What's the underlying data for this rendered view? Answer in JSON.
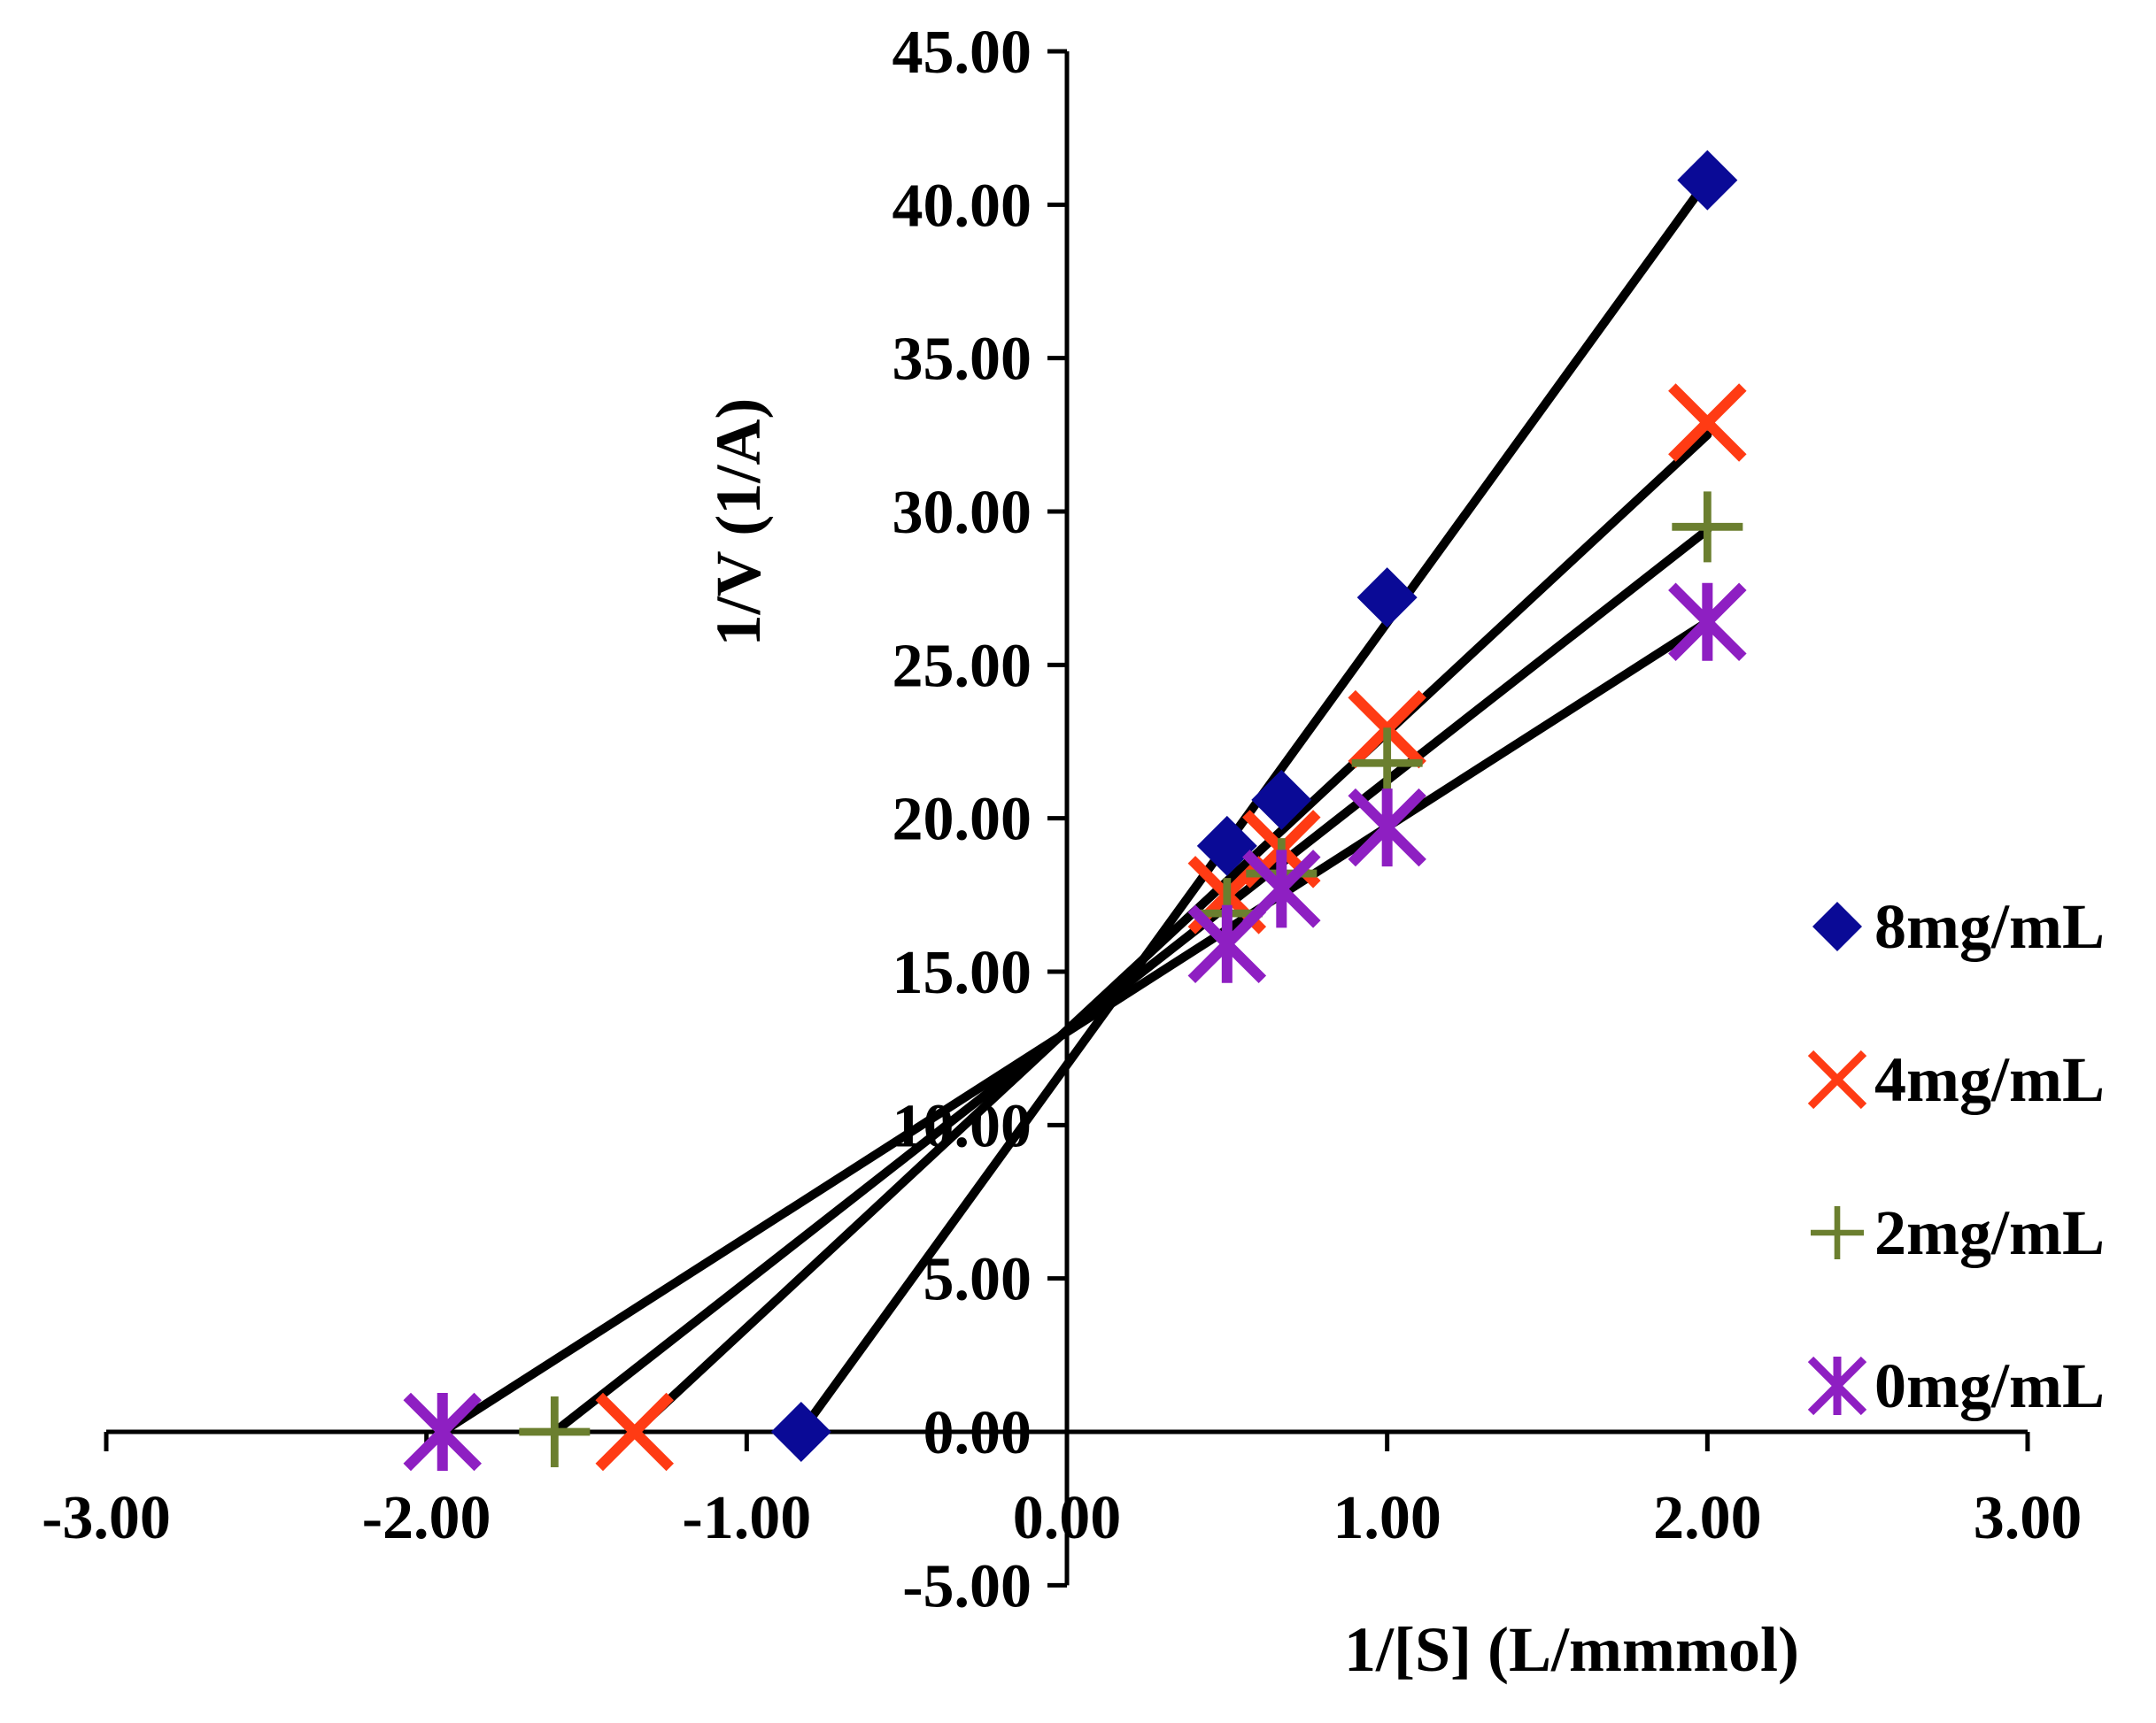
{
  "chart_data": {
    "type": "scatter",
    "title": "",
    "xlabel": "1/[S] (L/mmmol)",
    "ylabel": "1/V (1/A)",
    "xlim": [
      -3,
      3
    ],
    "ylim": [
      -5,
      45
    ],
    "x_ticks": [
      -3,
      -2,
      -1,
      0,
      1,
      2,
      3
    ],
    "y_ticks": [
      -5,
      0,
      5,
      10,
      15,
      20,
      25,
      30,
      35,
      40,
      45
    ],
    "x_tick_labels": [
      "-3.00",
      "-2.00",
      "-1.00",
      "0.00",
      "1.00",
      "2.00",
      "3.00"
    ],
    "y_tick_labels": [
      "-5.00",
      "0.00",
      "5.00",
      "10.00",
      "15.00",
      "20.00",
      "25.00",
      "30.00",
      "35.00",
      "40.00",
      "45.00"
    ],
    "grid": false,
    "legend_position": "right",
    "series": [
      {
        "name": "8mg/mL",
        "marker": "diamond",
        "color": "#0a0a96",
        "points": [
          [
            -0.83,
            0.0
          ],
          [
            0.5,
            19.1
          ],
          [
            0.67,
            20.6
          ],
          [
            1.0,
            27.2
          ],
          [
            2.0,
            40.8
          ]
        ],
        "fit_line": [
          [
            -0.83,
            0.0
          ],
          [
            2.0,
            40.8
          ]
        ]
      },
      {
        "name": "4mg/mL",
        "marker": "x",
        "color": "#ff3b14",
        "color_alt": "#c0280f",
        "points": [
          [
            -1.35,
            0.0
          ],
          [
            0.5,
            17.5
          ],
          [
            0.67,
            19.0
          ],
          [
            1.0,
            22.9
          ],
          [
            2.0,
            32.9
          ]
        ],
        "fit_line": [
          [
            -1.35,
            0.0
          ],
          [
            2.0,
            32.5
          ]
        ]
      },
      {
        "name": "2mg/mL",
        "marker": "plus",
        "color": "#6b7f2f",
        "points": [
          [
            -1.6,
            0.0
          ],
          [
            0.5,
            16.9
          ],
          [
            0.67,
            18.2
          ],
          [
            1.0,
            21.8
          ],
          [
            2.0,
            29.5
          ]
        ],
        "fit_line": [
          [
            -1.6,
            0.0
          ],
          [
            2.0,
            29.4
          ]
        ]
      },
      {
        "name": "0mg/mL",
        "marker": "star",
        "color": "#8e1fc2",
        "points": [
          [
            -1.95,
            0.0
          ],
          [
            0.5,
            15.9
          ],
          [
            0.67,
            17.7
          ],
          [
            1.0,
            19.7
          ],
          [
            2.0,
            26.4
          ]
        ],
        "fit_line": [
          [
            -1.95,
            0.0
          ],
          [
            2.0,
            26.4
          ]
        ]
      }
    ]
  }
}
